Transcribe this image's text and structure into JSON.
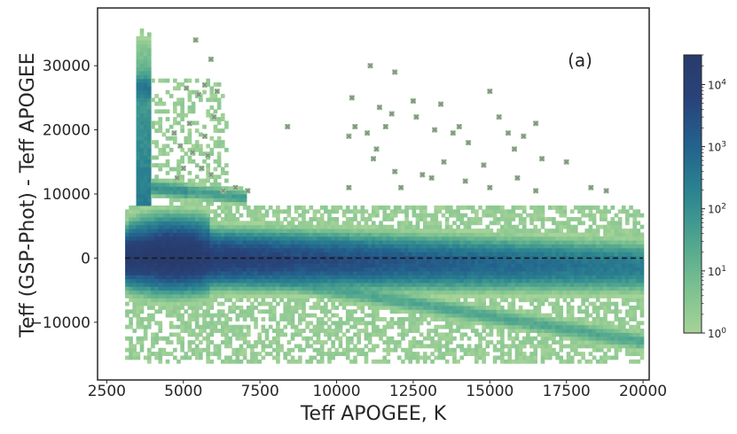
{
  "chart_data": {
    "type": "heatmap",
    "title": "",
    "panel_label": "(a)",
    "xlabel": "Teff APOGEE, K",
    "ylabel": "Teff (GSP-Phot) - Teff APOGEE",
    "xlim": [
      2200,
      20200
    ],
    "ylim": [
      -19000,
      39000
    ],
    "x_ticks": [
      2500,
      5000,
      7500,
      10000,
      12500,
      15000,
      17500,
      20000
    ],
    "x_tick_labels": [
      "2500",
      "5000",
      "7500",
      "10000",
      "12500",
      "15000",
      "17500",
      "20000"
    ],
    "y_ticks": [
      -10000,
      0,
      10000,
      20000,
      30000
    ],
    "y_tick_labels": [
      "−10000",
      "0",
      "10000",
      "20000",
      "30000"
    ],
    "reference_line": {
      "y": 0,
      "x_range": [
        3100,
        20000
      ],
      "style": "dashed",
      "color": "#1a1a1a"
    },
    "colorbar": {
      "scale": "log",
      "range": [
        1,
        30000
      ],
      "ticks": [
        1,
        10,
        100,
        1000,
        10000
      ],
      "tick_base": "10",
      "tick_exponents": [
        "0",
        "1",
        "2",
        "3",
        "4"
      ],
      "colors": [
        "#a6d397",
        "#7cc190",
        "#4fa58f",
        "#2c8590",
        "#23658e",
        "#28437a",
        "#283b6b"
      ]
    },
    "density_regions": [
      {
        "name": "main-sequence-band",
        "x": [
          3100,
          20000
        ],
        "y_center_at_x_start": 200,
        "y_center_at_x_end": -1300,
        "peak_count": 20000
      },
      {
        "name": "cool-dwarf-core",
        "x": [
          3500,
          5600
        ],
        "y_center": 500,
        "peak_count": 20000
      },
      {
        "name": "lower-diagonal-branch",
        "x": [
          5000,
          20000
        ],
        "y_center_at_x_start": -1000,
        "y_center_at_x_end": -13000,
        "peak_count": 30
      },
      {
        "name": "cool-star-vertical-spike",
        "x": [
          3500,
          3900
        ],
        "y": [
          8000,
          36000
        ],
        "peak_count": 300
      },
      {
        "name": "high-offset-branch",
        "x": [
          4000,
          7000
        ],
        "y_center_at_x_start": 11000,
        "y_center_at_x_end": 9500,
        "peak_count": 100
      }
    ],
    "outlier_markers": {
      "marker": "x",
      "color": "#888888",
      "points": [
        [
          5400,
          34000
        ],
        [
          5900,
          31000
        ],
        [
          5100,
          26500
        ],
        [
          5500,
          25500
        ],
        [
          5700,
          27000
        ],
        [
          6100,
          26000
        ],
        [
          6000,
          22000
        ],
        [
          5200,
          21000
        ],
        [
          4700,
          19500
        ],
        [
          5700,
          19000
        ],
        [
          4900,
          17500
        ],
        [
          5300,
          16500
        ],
        [
          5800,
          16000
        ],
        [
          5000,
          14000
        ],
        [
          5600,
          14000
        ],
        [
          4800,
          12500
        ],
        [
          5900,
          13000
        ],
        [
          6300,
          10500
        ],
        [
          6700,
          11000
        ],
        [
          7100,
          10500
        ],
        [
          8400,
          20500
        ],
        [
          10500,
          25000
        ],
        [
          10400,
          19000
        ],
        [
          10600,
          20500
        ],
        [
          10400,
          11000
        ],
        [
          11100,
          30000
        ],
        [
          11400,
          23500
        ],
        [
          11000,
          19500
        ],
        [
          11300,
          17000
        ],
        [
          11200,
          15500
        ],
        [
          11800,
          22500
        ],
        [
          11900,
          29000
        ],
        [
          11600,
          20500
        ],
        [
          11900,
          13500
        ],
        [
          12100,
          11000
        ],
        [
          12500,
          24500
        ],
        [
          12600,
          22000
        ],
        [
          13200,
          20000
        ],
        [
          13400,
          24000
        ],
        [
          13100,
          12500
        ],
        [
          13800,
          19500
        ],
        [
          14000,
          20500
        ],
        [
          14300,
          18000
        ],
        [
          14800,
          14500
        ],
        [
          15000,
          26000
        ],
        [
          15300,
          22000
        ],
        [
          15000,
          11000
        ],
        [
          15600,
          19500
        ],
        [
          15800,
          17000
        ],
        [
          16100,
          19000
        ],
        [
          16500,
          21000
        ],
        [
          15900,
          12500
        ],
        [
          16700,
          15500
        ],
        [
          16500,
          10500
        ],
        [
          17500,
          15000
        ],
        [
          18300,
          11000
        ],
        [
          18800,
          10500
        ],
        [
          13500,
          15000
        ],
        [
          12800,
          13000
        ],
        [
          14200,
          12000
        ]
      ]
    }
  }
}
